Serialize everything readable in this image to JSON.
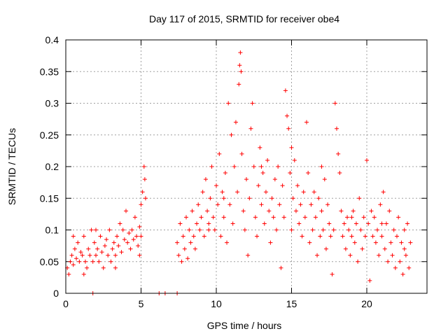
{
  "chart_data": {
    "type": "scatter",
    "title": "Day 117 of 2015, SRMTID for receiver obe4",
    "xlabel": "GPS time / hours",
    "ylabel": "SRMTID / TECUs",
    "xlim": [
      0,
      24
    ],
    "ylim": [
      0,
      0.4
    ],
    "xticks": [
      0,
      5,
      10,
      15,
      20
    ],
    "yticks": [
      0,
      0.05,
      0.1,
      0.15,
      0.2,
      0.25,
      0.3,
      0.35,
      0.4
    ],
    "xtick_labels": [
      "0",
      "5",
      "10",
      "15",
      "20"
    ],
    "ytick_labels": [
      "0",
      "0.05",
      "0.1",
      "0.15",
      "0.2",
      "0.25",
      "0.3",
      "0.35",
      "0.4"
    ],
    "grid": true,
    "marker": "+",
    "color": "#ff0000",
    "series": [
      {
        "name": "SRMTID",
        "points": [
          [
            0.1,
            0.04
          ],
          [
            0.2,
            0.03
          ],
          [
            0.3,
            0.05
          ],
          [
            0.4,
            0.06
          ],
          [
            0.5,
            0.045
          ],
          [
            0.6,
            0.07
          ],
          [
            0.7,
            0.055
          ],
          [
            0.8,
            0.08
          ],
          [
            0.9,
            0.05
          ],
          [
            1.0,
            0.065
          ],
          [
            1.1,
            0.06
          ],
          [
            1.2,
            0.09
          ],
          [
            1.3,
            0.05
          ],
          [
            1.4,
            0.04
          ],
          [
            1.5,
            0.07
          ],
          [
            1.6,
            0.06
          ],
          [
            1.7,
            0.1
          ],
          [
            1.8,
            0.05
          ],
          [
            1.9,
            0.08
          ],
          [
            2.0,
            0.06
          ],
          [
            2.1,
            0.07
          ],
          [
            2.2,
            0.05
          ],
          [
            2.3,
            0.09
          ],
          [
            2.4,
            0.065
          ],
          [
            2.5,
            0.04
          ],
          [
            2.6,
            0.075
          ],
          [
            2.7,
            0.085
          ],
          [
            2.8,
            0.06
          ],
          [
            2.9,
            0.1
          ],
          [
            3.0,
            0.05
          ],
          [
            3.1,
            0.07
          ],
          [
            3.2,
            0.08
          ],
          [
            3.3,
            0.06
          ],
          [
            3.4,
            0.09
          ],
          [
            3.5,
            0.075
          ],
          [
            3.6,
            0.11
          ],
          [
            3.7,
            0.065
          ],
          [
            3.8,
            0.1
          ],
          [
            3.9,
            0.085
          ],
          [
            4.0,
            0.13
          ],
          [
            4.1,
            0.08
          ],
          [
            4.2,
            0.095
          ],
          [
            4.3,
            0.07
          ],
          [
            4.4,
            0.1
          ],
          [
            4.5,
            0.085
          ],
          [
            4.6,
            0.12
          ],
          [
            4.7,
            0.09
          ],
          [
            4.8,
            0.075
          ],
          [
            4.9,
            0.105
          ],
          [
            5.0,
            0.09
          ],
          [
            5.1,
            0.16
          ],
          [
            5.2,
            0.2
          ],
          [
            5.25,
            0.18
          ],
          [
            5.3,
            0.15
          ],
          [
            5.0,
            0.14
          ],
          [
            4.9,
            0.06
          ],
          [
            0.5,
            0.09
          ],
          [
            1.2,
            0.03
          ],
          [
            2.0,
            0.1
          ],
          [
            3.3,
            0.04
          ],
          [
            7.4,
            0.08
          ],
          [
            7.5,
            0.06
          ],
          [
            7.6,
            0.11
          ],
          [
            7.7,
            0.05
          ],
          [
            7.8,
            0.09
          ],
          [
            7.9,
            0.07
          ],
          [
            8.0,
            0.12
          ],
          [
            8.1,
            0.055
          ],
          [
            8.2,
            0.1
          ],
          [
            8.3,
            0.08
          ],
          [
            8.4,
            0.13
          ],
          [
            8.5,
            0.09
          ],
          [
            8.6,
            0.07
          ],
          [
            8.7,
            0.11
          ],
          [
            8.8,
            0.14
          ],
          [
            8.9,
            0.1
          ],
          [
            9.0,
            0.12
          ],
          [
            9.1,
            0.16
          ],
          [
            9.2,
            0.09
          ],
          [
            9.3,
            0.18
          ],
          [
            9.4,
            0.13
          ],
          [
            9.5,
            0.11
          ],
          [
            9.6,
            0.15
          ],
          [
            9.7,
            0.2
          ],
          [
            9.8,
            0.12
          ],
          [
            9.9,
            0.1
          ],
          [
            10.0,
            0.17
          ],
          [
            10.1,
            0.14
          ],
          [
            10.2,
            0.22
          ],
          [
            10.3,
            0.09
          ],
          [
            10.4,
            0.16
          ],
          [
            10.5,
            0.12
          ],
          [
            10.6,
            0.19
          ],
          [
            10.7,
            0.08
          ],
          [
            10.8,
            0.3
          ],
          [
            10.9,
            0.14
          ],
          [
            11.0,
            0.25
          ],
          [
            11.1,
            0.11
          ],
          [
            11.2,
            0.2
          ],
          [
            11.3,
            0.27
          ],
          [
            11.4,
            0.16
          ],
          [
            11.5,
            0.33
          ],
          [
            11.55,
            0.36
          ],
          [
            11.6,
            0.38
          ],
          [
            11.65,
            0.35
          ],
          [
            11.7,
            0.22
          ],
          [
            11.8,
            0.13
          ],
          [
            11.9,
            0.1
          ],
          [
            12.0,
            0.18
          ],
          [
            12.1,
            0.06
          ],
          [
            12.2,
            0.15
          ],
          [
            12.3,
            0.26
          ],
          [
            12.4,
            0.3
          ],
          [
            12.5,
            0.2
          ],
          [
            12.6,
            0.12
          ],
          [
            12.7,
            0.09
          ],
          [
            12.8,
            0.17
          ],
          [
            12.9,
            0.23
          ],
          [
            13.0,
            0.14
          ],
          [
            13.1,
            0.19
          ],
          [
            13.2,
            0.11
          ],
          [
            13.3,
            0.16
          ],
          [
            13.4,
            0.21
          ],
          [
            13.5,
            0.13
          ],
          [
            13.6,
            0.08
          ],
          [
            13.7,
            0.15
          ],
          [
            13.8,
            0.12
          ],
          [
            13.9,
            0.18
          ],
          [
            14.0,
            0.1
          ],
          [
            14.1,
            0.2
          ],
          [
            14.2,
            0.14
          ],
          [
            14.3,
            0.04
          ],
          [
            14.4,
            0.17
          ],
          [
            14.5,
            0.12
          ],
          [
            14.6,
            0.32
          ],
          [
            14.7,
            0.28
          ],
          [
            14.8,
            0.26
          ],
          [
            14.9,
            0.19
          ],
          [
            15.0,
            0.23
          ],
          [
            15.1,
            0.15
          ],
          [
            15.2,
            0.21
          ],
          [
            15.3,
            0.13
          ],
          [
            15.4,
            0.17
          ],
          [
            15.5,
            0.11
          ],
          [
            15.6,
            0.14
          ],
          [
            15.7,
            0.09
          ],
          [
            15.8,
            0.16
          ],
          [
            15.9,
            0.12
          ],
          [
            16.0,
            0.27
          ],
          [
            16.1,
            0.19
          ],
          [
            16.2,
            0.08
          ],
          [
            16.3,
            0.14
          ],
          [
            16.4,
            0.1
          ],
          [
            16.5,
            0.16
          ],
          [
            16.6,
            0.12
          ],
          [
            16.7,
            0.06
          ],
          [
            16.8,
            0.15
          ],
          [
            16.9,
            0.09
          ],
          [
            17.0,
            0.13
          ],
          [
            17.1,
            0.1
          ],
          [
            17.2,
            0.18
          ],
          [
            17.3,
            0.07
          ],
          [
            17.4,
            0.14
          ],
          [
            17.5,
            0.11
          ],
          [
            17.6,
            0.09
          ],
          [
            17.7,
            0.03
          ],
          [
            17.8,
            0.1
          ],
          [
            17.9,
            0.3
          ],
          [
            18.0,
            0.26
          ],
          [
            18.1,
            0.22
          ],
          [
            18.2,
            0.19
          ],
          [
            18.3,
            0.13
          ],
          [
            18.4,
            0.09
          ],
          [
            18.5,
            0.11
          ],
          [
            18.6,
            0.07
          ],
          [
            18.7,
            0.12
          ],
          [
            18.8,
            0.1
          ],
          [
            18.9,
            0.06
          ],
          [
            19.0,
            0.09
          ],
          [
            19.1,
            0.13
          ],
          [
            19.2,
            0.08
          ],
          [
            19.3,
            0.11
          ],
          [
            19.4,
            0.05
          ],
          [
            19.5,
            0.15
          ],
          [
            19.6,
            0.1
          ],
          [
            19.7,
            0.07
          ],
          [
            19.8,
            0.12
          ],
          [
            19.9,
            0.09
          ],
          [
            20.0,
            0.21
          ],
          [
            20.1,
            0.11
          ],
          [
            20.2,
            0.02
          ],
          [
            20.3,
            0.13
          ],
          [
            20.4,
            0.09
          ],
          [
            20.5,
            0.12
          ],
          [
            20.6,
            0.08
          ],
          [
            20.7,
            0.1
          ],
          [
            20.8,
            0.06
          ],
          [
            20.9,
            0.14
          ],
          [
            21.0,
            0.09
          ],
          [
            21.1,
            0.16
          ],
          [
            21.2,
            0.07
          ],
          [
            21.3,
            0.11
          ],
          [
            21.4,
            0.05
          ],
          [
            21.5,
            0.13
          ],
          [
            21.6,
            0.08
          ],
          [
            21.7,
            0.06
          ],
          [
            21.8,
            0.1
          ],
          [
            21.9,
            0.04
          ],
          [
            22.0,
            0.09
          ],
          [
            22.1,
            0.12
          ],
          [
            22.2,
            0.05
          ],
          [
            22.3,
            0.08
          ],
          [
            22.4,
            0.03
          ],
          [
            22.5,
            0.1
          ],
          [
            22.6,
            0.06
          ],
          [
            22.7,
            0.11
          ],
          [
            22.8,
            0.04
          ],
          [
            22.9,
            0.08
          ],
          [
            1.8,
            0.0
          ],
          [
            6.2,
            0.0
          ],
          [
            6.6,
            0.0
          ],
          [
            7.4,
            0.0
          ],
          [
            9.5,
            0.1
          ],
          [
            10.5,
            0.15
          ],
          [
            13.0,
            0.2
          ],
          [
            15.0,
            0.1
          ],
          [
            17.0,
            0.2
          ],
          [
            19.0,
            0.12
          ],
          [
            21.0,
            0.11
          ],
          [
            22.5,
            0.07
          ]
        ]
      }
    ]
  }
}
